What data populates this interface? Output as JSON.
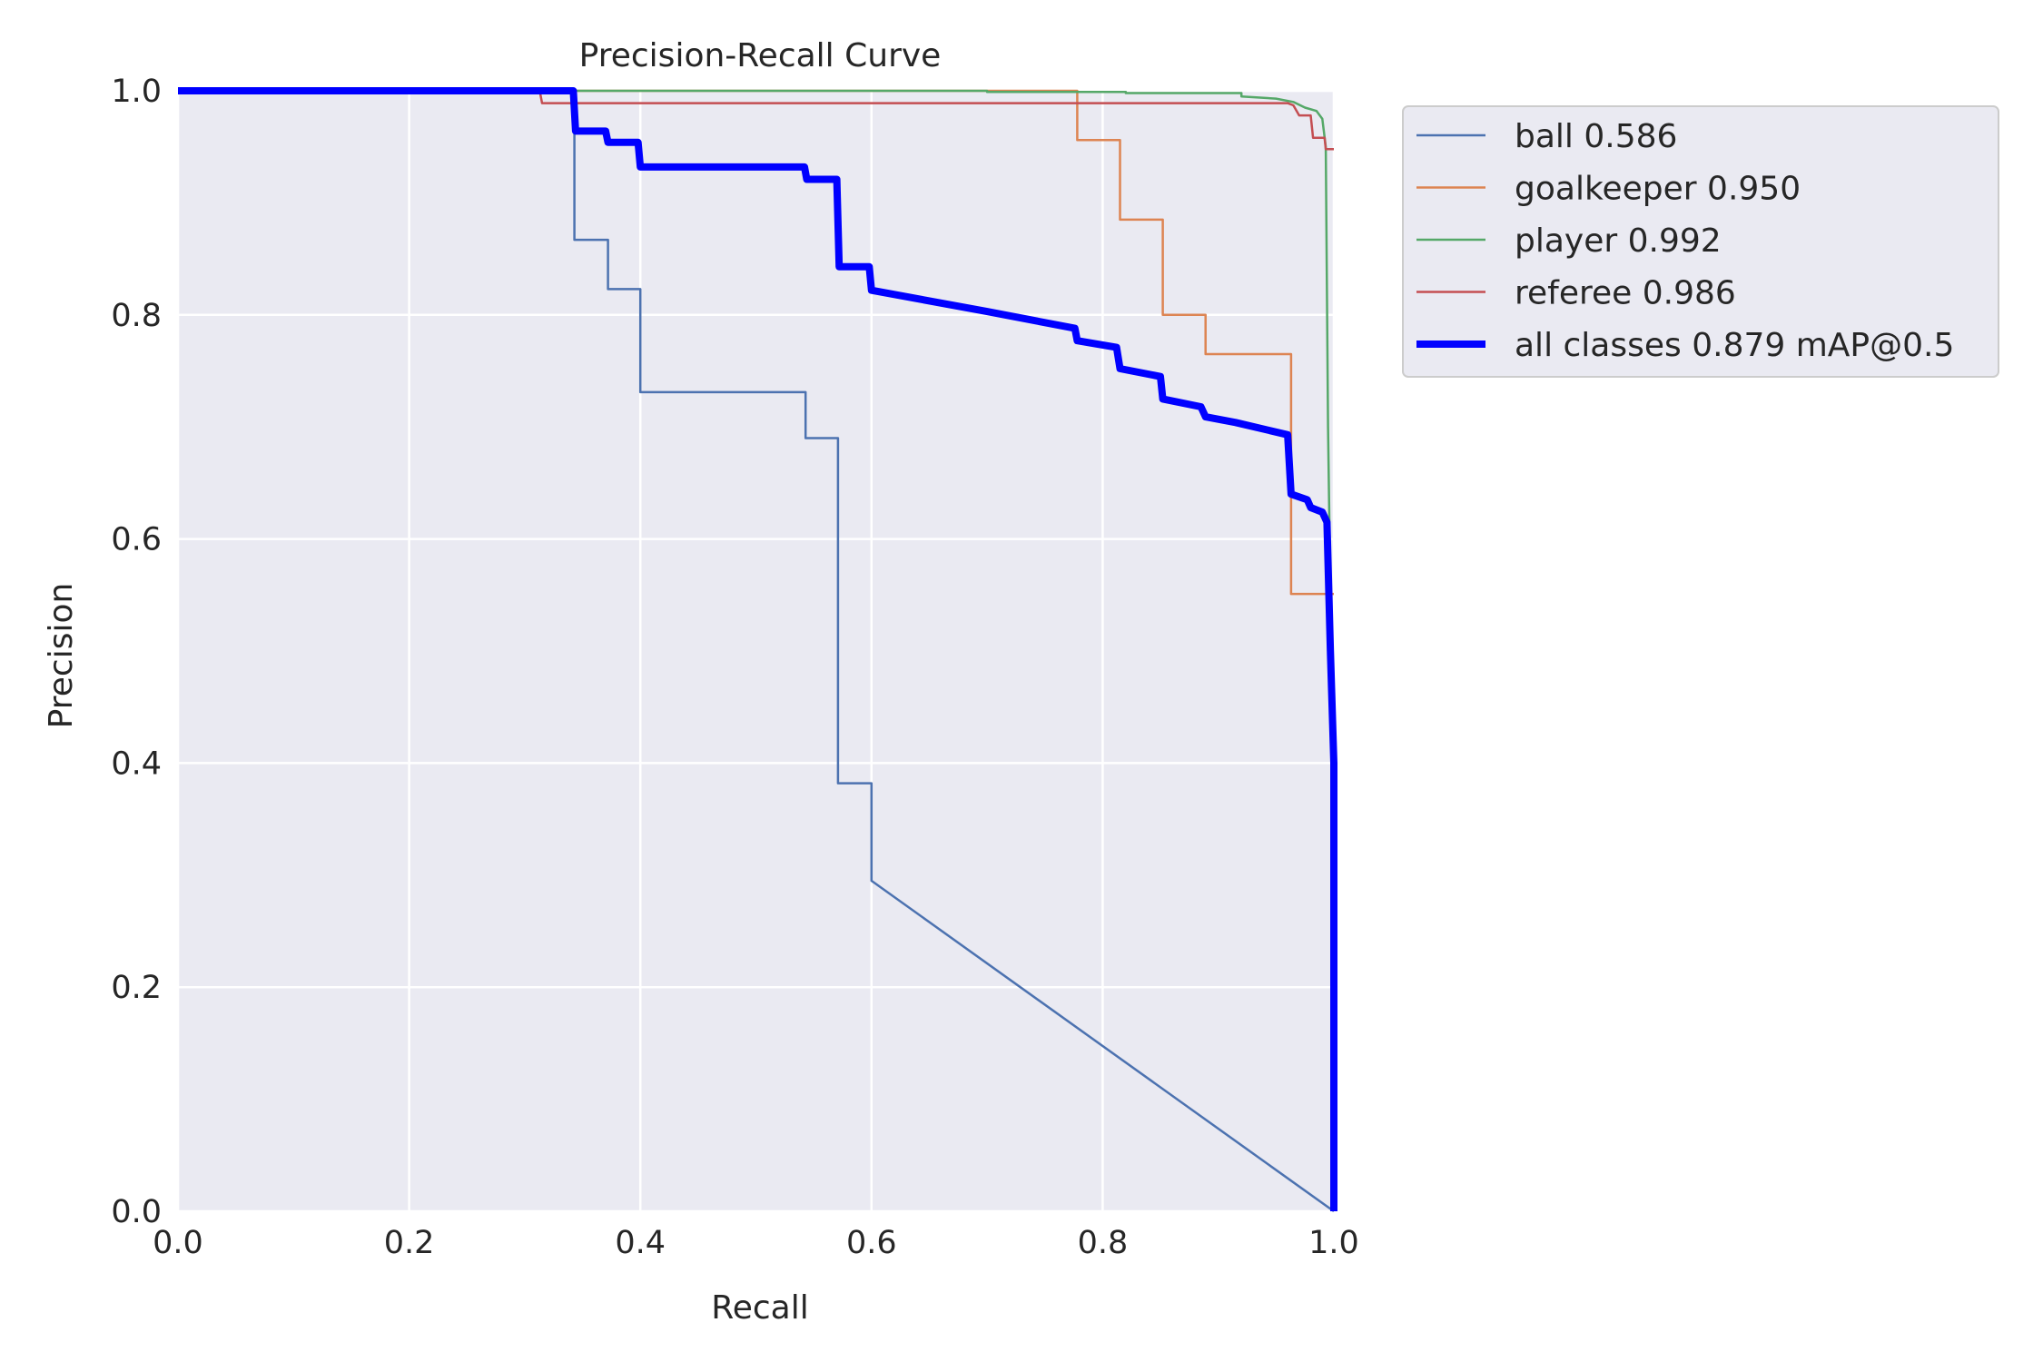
{
  "chart_data": {
    "type": "line",
    "title": "Precision-Recall Curve",
    "xlabel": "Recall",
    "ylabel": "Precision",
    "xlim": [
      0.0,
      1.0
    ],
    "ylim": [
      0.0,
      1.0
    ],
    "xticks": [
      "0.0",
      "0.2",
      "0.4",
      "0.6",
      "0.8",
      "1.0"
    ],
    "yticks": [
      "0.0",
      "0.2",
      "0.4",
      "0.6",
      "0.8",
      "1.0"
    ],
    "grid": true,
    "legend_position": "outside-right-top",
    "background_color": "#eaeaf2",
    "grid_color": "#ffffff",
    "series": [
      {
        "name": "ball 0.586",
        "color": "#4c72b0",
        "thick": false,
        "points": [
          [
            0.0,
            1.0
          ],
          [
            0.343,
            1.0
          ],
          [
            0.343,
            0.867
          ],
          [
            0.372,
            0.867
          ],
          [
            0.372,
            0.823
          ],
          [
            0.4,
            0.823
          ],
          [
            0.4,
            0.731
          ],
          [
            0.543,
            0.731
          ],
          [
            0.543,
            0.69
          ],
          [
            0.571,
            0.69
          ],
          [
            0.571,
            0.382
          ],
          [
            0.6,
            0.382
          ],
          [
            0.6,
            0.295
          ],
          [
            1.0,
            0.0
          ]
        ]
      },
      {
        "name": "goalkeeper 0.950",
        "color": "#dd8452",
        "thick": false,
        "points": [
          [
            0.0,
            1.0
          ],
          [
            0.778,
            1.0
          ],
          [
            0.778,
            0.956
          ],
          [
            0.815,
            0.956
          ],
          [
            0.815,
            0.885
          ],
          [
            0.852,
            0.885
          ],
          [
            0.852,
            0.8
          ],
          [
            0.889,
            0.8
          ],
          [
            0.889,
            0.765
          ],
          [
            0.963,
            0.765
          ],
          [
            0.963,
            0.551
          ],
          [
            1.0,
            0.551
          ]
        ]
      },
      {
        "name": "player 0.992",
        "color": "#55a868",
        "thick": false,
        "points": [
          [
            0.0,
            1.0
          ],
          [
            0.7,
            1.0
          ],
          [
            0.7,
            0.999
          ],
          [
            0.82,
            0.999
          ],
          [
            0.82,
            0.998
          ],
          [
            0.92,
            0.998
          ],
          [
            0.92,
            0.995
          ],
          [
            0.95,
            0.993
          ],
          [
            0.965,
            0.99
          ],
          [
            0.975,
            0.985
          ],
          [
            0.985,
            0.982
          ],
          [
            0.99,
            0.975
          ],
          [
            0.993,
            0.95
          ],
          [
            0.995,
            0.7
          ],
          [
            0.997,
            0.55
          ],
          [
            1.0,
            0.4
          ]
        ]
      },
      {
        "name": "referee 0.986",
        "color": "#c44e52",
        "thick": false,
        "points": [
          [
            0.0,
            1.0
          ],
          [
            0.313,
            1.0
          ],
          [
            0.315,
            0.989
          ],
          [
            0.96,
            0.989
          ],
          [
            0.965,
            0.987
          ],
          [
            0.97,
            0.978
          ],
          [
            0.98,
            0.978
          ],
          [
            0.982,
            0.958
          ],
          [
            0.992,
            0.958
          ],
          [
            0.993,
            0.948
          ],
          [
            1.0,
            0.948
          ]
        ]
      },
      {
        "name": "all classes 0.879 mAP@0.5",
        "color": "#0000ff",
        "thick": true,
        "points": [
          [
            0.0,
            1.0
          ],
          [
            0.342,
            1.0
          ],
          [
            0.344,
            0.964
          ],
          [
            0.37,
            0.964
          ],
          [
            0.372,
            0.954
          ],
          [
            0.398,
            0.954
          ],
          [
            0.4,
            0.932
          ],
          [
            0.542,
            0.932
          ],
          [
            0.544,
            0.921
          ],
          [
            0.57,
            0.921
          ],
          [
            0.572,
            0.843
          ],
          [
            0.598,
            0.843
          ],
          [
            0.6,
            0.822
          ],
          [
            0.7,
            0.803
          ],
          [
            0.776,
            0.788
          ],
          [
            0.778,
            0.777
          ],
          [
            0.812,
            0.771
          ],
          [
            0.815,
            0.752
          ],
          [
            0.85,
            0.745
          ],
          [
            0.852,
            0.725
          ],
          [
            0.885,
            0.718
          ],
          [
            0.889,
            0.709
          ],
          [
            0.915,
            0.704
          ],
          [
            0.96,
            0.693
          ],
          [
            0.963,
            0.64
          ],
          [
            0.977,
            0.635
          ],
          [
            0.98,
            0.628
          ],
          [
            0.99,
            0.624
          ],
          [
            0.994,
            0.615
          ],
          [
            0.997,
            0.5
          ],
          [
            1.0,
            0.4
          ],
          [
            1.0,
            0.0
          ]
        ]
      }
    ]
  }
}
